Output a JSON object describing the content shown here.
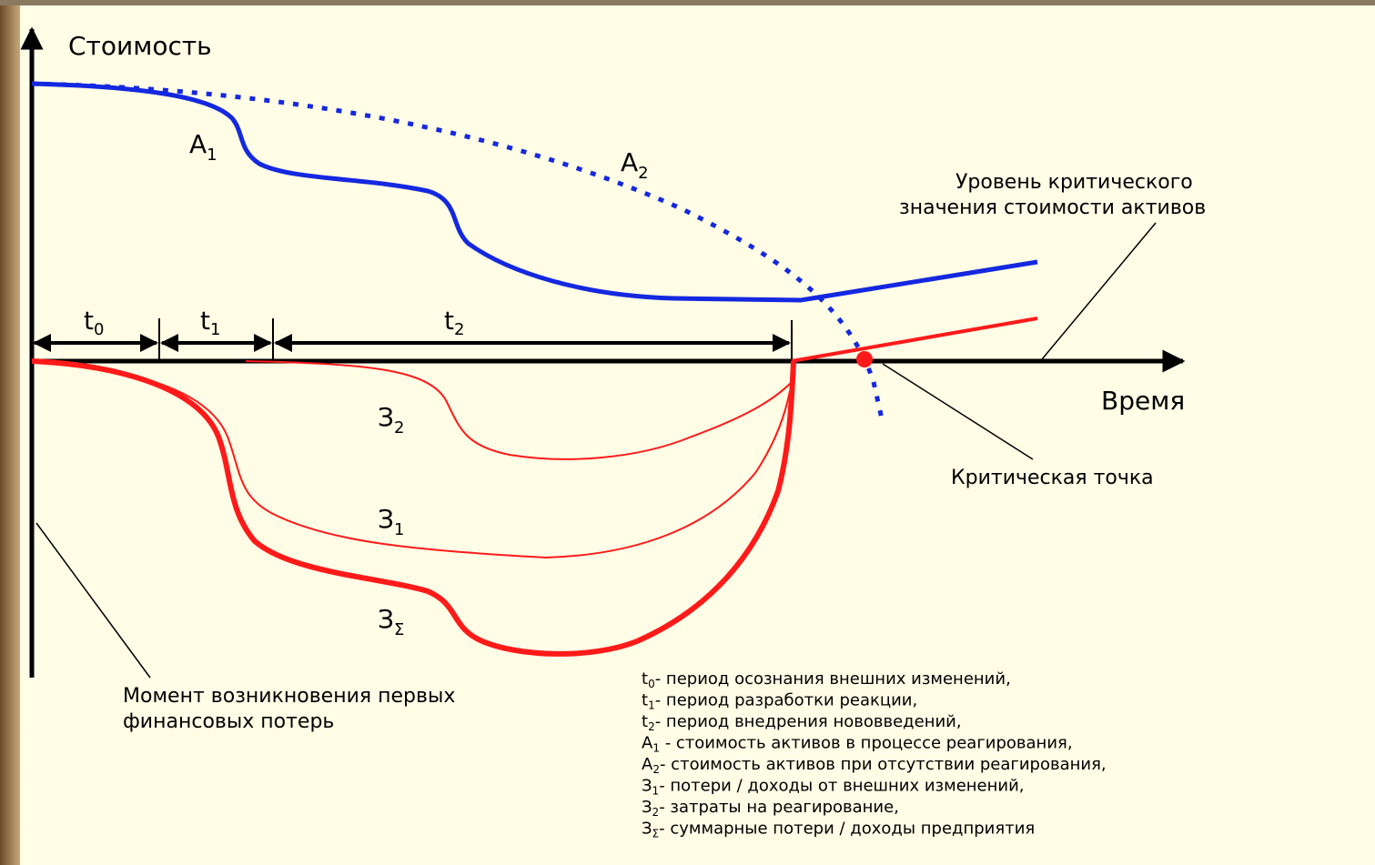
{
  "axes": {
    "y_label": "Стоимость",
    "x_label": "Время"
  },
  "curves": [
    {
      "letter": "А",
      "sub": "1"
    },
    {
      "letter": "А",
      "sub": "2"
    },
    {
      "letter": "З",
      "sub": "2"
    },
    {
      "letter": "З",
      "sub": "1"
    },
    {
      "letter": "З",
      "sub": "Σ"
    }
  ],
  "periods": [
    {
      "letter": "t",
      "sub": "0"
    },
    {
      "letter": "t",
      "sub": "1"
    },
    {
      "letter": "t",
      "sub": "2"
    }
  ],
  "annotations": {
    "critical_level": [
      "Уровень критического",
      "значения стоимости активов"
    ],
    "critical_point": "Критическая точка",
    "first_losses": [
      "Момент возникновения первых",
      "финансовых потерь"
    ]
  },
  "legend": [
    {
      "symbol": "t",
      "sub": "0",
      "text": "- период осознания внешних изменений,"
    },
    {
      "symbol": "t",
      "sub": "1",
      "text": "- период разработки реакции,"
    },
    {
      "symbol": "t",
      "sub": "2",
      "text": "- период внедрения нововведений,"
    },
    {
      "symbol": "А",
      "sub": "1",
      "text": " - стоимость активов в процессе реагирования,"
    },
    {
      "symbol": "А",
      "sub": "2",
      "text": "- стоимость активов при отсутствии реагирования,"
    },
    {
      "symbol": "З",
      "sub": "1",
      "text": "- потери / доходы от внешних изменений,"
    },
    {
      "symbol": "З",
      "sub": "2",
      "text": "- затраты на реагирование,"
    },
    {
      "symbol": "З",
      "sub": "Σ",
      "text": "- суммарные потери / доходы предприятия"
    }
  ]
}
